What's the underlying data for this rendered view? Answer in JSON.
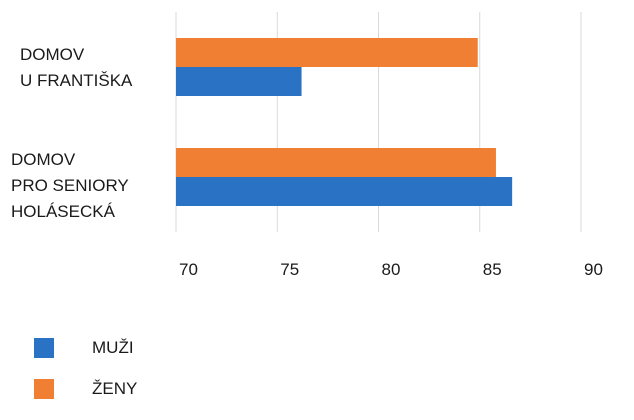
{
  "chart_data": {
    "type": "bar",
    "orientation": "horizontal",
    "categories": [
      [
        "DOMOV",
        "U FRANTIŠKA"
      ],
      [
        "DOMOV",
        "PRO SENIORY",
        "HOLÁSECKÁ"
      ]
    ],
    "series": [
      {
        "name": "ŽENY",
        "color": "#f07f33",
        "values": [
          84.9,
          85.8
        ]
      },
      {
        "name": "MUŽI",
        "color": "#2a72c3",
        "values": [
          76.2,
          86.6
        ]
      }
    ],
    "xlim": [
      70,
      90
    ],
    "x_ticks": [
      "70",
      "75",
      "80",
      "85",
      "90"
    ],
    "grid": true,
    "legend_position": "bottom-left",
    "title": "",
    "xlabel": "",
    "ylabel": ""
  }
}
